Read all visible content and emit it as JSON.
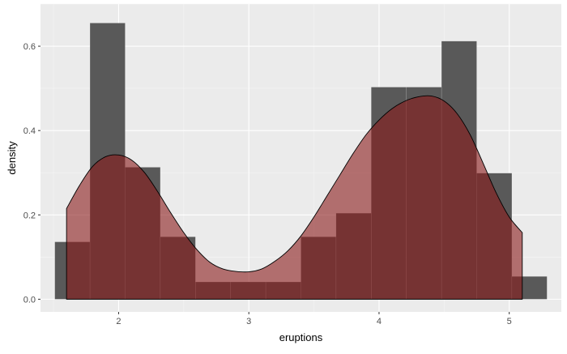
{
  "chart_data": {
    "type": "histogram",
    "xlabel": "eruptions",
    "ylabel": "density",
    "xlim": [
      1.4,
      5.4
    ],
    "ylim": [
      -0.03,
      0.7
    ],
    "x_ticks": [
      2,
      3,
      4,
      5
    ],
    "x_tick_labels": [
      "2",
      "3",
      "4",
      "5"
    ],
    "y_ticks": [
      0.0,
      0.2,
      0.4,
      0.6
    ],
    "y_tick_labels": [
      "0.0",
      "0.2",
      "0.4",
      "0.6"
    ],
    "x_minor_ticks": [
      1.5,
      2.5,
      3.5,
      4.5,
      5.5
    ],
    "y_minor_ticks": [
      0.1,
      0.3,
      0.5,
      0.7
    ],
    "grid": true,
    "histogram": {
      "bin_width": 0.27,
      "bins": [
        {
          "x0": 1.51,
          "x1": 1.78,
          "density": 0.136
        },
        {
          "x0": 1.78,
          "x1": 2.05,
          "density": 0.655
        },
        {
          "x0": 2.05,
          "x1": 2.32,
          "density": 0.313
        },
        {
          "x0": 2.32,
          "x1": 2.59,
          "density": 0.148
        },
        {
          "x0": 2.59,
          "x1": 2.86,
          "density": 0.041
        },
        {
          "x0": 2.86,
          "x1": 3.13,
          "density": 0.041
        },
        {
          "x0": 3.13,
          "x1": 3.4,
          "density": 0.041
        },
        {
          "x0": 3.4,
          "x1": 3.67,
          "density": 0.148
        },
        {
          "x0": 3.67,
          "x1": 3.94,
          "density": 0.204
        },
        {
          "x0": 3.94,
          "x1": 4.21,
          "density": 0.503
        },
        {
          "x0": 4.21,
          "x1": 4.48,
          "density": 0.503
        },
        {
          "x0": 4.48,
          "x1": 4.75,
          "density": 0.612
        },
        {
          "x0": 4.75,
          "x1": 5.02,
          "density": 0.299
        },
        {
          "x0": 5.02,
          "x1": 5.29,
          "density": 0.054
        }
      ]
    },
    "density_curve": {
      "x": [
        1.6,
        1.7,
        1.8,
        1.9,
        2.0,
        2.1,
        2.2,
        2.3,
        2.4,
        2.5,
        2.6,
        2.7,
        2.8,
        2.9,
        3.0,
        3.1,
        3.2,
        3.3,
        3.4,
        3.5,
        3.6,
        3.7,
        3.8,
        3.9,
        4.0,
        4.1,
        4.2,
        4.3,
        4.4,
        4.5,
        4.6,
        4.7,
        4.8,
        4.9,
        5.0,
        5.1
      ],
      "y": [
        0.215,
        0.27,
        0.315,
        0.338,
        0.342,
        0.33,
        0.3,
        0.255,
        0.205,
        0.158,
        0.118,
        0.088,
        0.072,
        0.066,
        0.065,
        0.072,
        0.09,
        0.115,
        0.15,
        0.195,
        0.245,
        0.295,
        0.345,
        0.39,
        0.425,
        0.452,
        0.47,
        0.48,
        0.482,
        0.47,
        0.44,
        0.39,
        0.322,
        0.252,
        0.195,
        0.158
      ]
    },
    "colors": {
      "panel": "#ebebeb",
      "grid_major": "#ffffff",
      "histogram_fill": "#595959",
      "density_fill": "#8b1a1a",
      "density_fill_opacity": 0.6,
      "density_line": "#000000"
    }
  }
}
